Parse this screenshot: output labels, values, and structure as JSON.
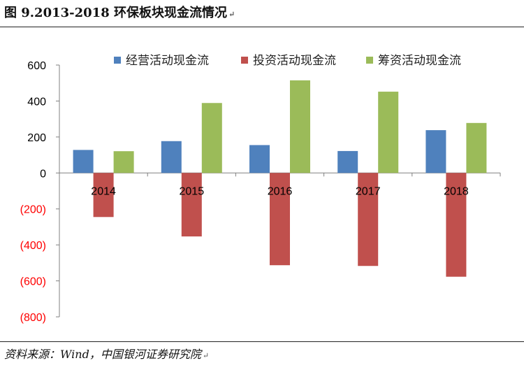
{
  "header": {
    "title": "图 9.2013-2018 环保板块现金流情况",
    "return_mark": "↵"
  },
  "footer": {
    "source": "资料来源：Wind，中国银河证券研究院",
    "return_mark": "↵"
  },
  "colors": {
    "series": [
      "#4F81BD",
      "#C0504D",
      "#9BBB59"
    ],
    "negative_tick": "#FF0000",
    "positive_tick": "#000000",
    "axis": "#808080"
  },
  "chart_data": {
    "type": "bar",
    "title": "",
    "xlabel": "",
    "ylabel": "",
    "ylim": [
      -800,
      600
    ],
    "y_ticks": [
      600,
      400,
      200,
      0,
      -200,
      -400,
      -600,
      -800
    ],
    "y_tick_labels": [
      "600",
      "400",
      "200",
      "0",
      "(200)",
      "(400)",
      "(600)",
      "(800)"
    ],
    "categories": [
      "2014",
      "2015",
      "2016",
      "2017",
      "2018"
    ],
    "series": [
      {
        "name": "经营活动现金流",
        "values": [
          128,
          177,
          155,
          122,
          238
        ]
      },
      {
        "name": "投资活动现金流",
        "values": [
          -245,
          -353,
          -513,
          -517,
          -577
        ]
      },
      {
        "name": "筹资活动现金流",
        "values": [
          121,
          389,
          515,
          452,
          278
        ]
      }
    ],
    "legend_position": "top",
    "grid": false
  }
}
